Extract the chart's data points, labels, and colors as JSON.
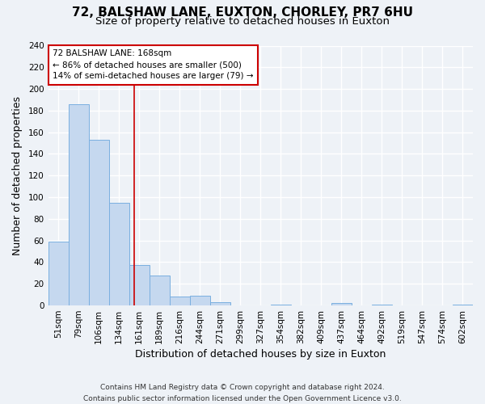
{
  "title": "72, BALSHAW LANE, EUXTON, CHORLEY, PR7 6HU",
  "subtitle": "Size of property relative to detached houses in Euxton",
  "xlabel": "Distribution of detached houses by size in Euxton",
  "ylabel": "Number of detached properties",
  "footer_line1": "Contains HM Land Registry data © Crown copyright and database right 2024.",
  "footer_line2": "Contains public sector information licensed under the Open Government Licence v3.0.",
  "bin_labels": [
    "51sqm",
    "79sqm",
    "106sqm",
    "134sqm",
    "161sqm",
    "189sqm",
    "216sqm",
    "244sqm",
    "271sqm",
    "299sqm",
    "327sqm",
    "354sqm",
    "382sqm",
    "409sqm",
    "437sqm",
    "464sqm",
    "492sqm",
    "519sqm",
    "547sqm",
    "574sqm",
    "602sqm"
  ],
  "bar_heights": [
    59,
    186,
    153,
    95,
    37,
    28,
    8,
    9,
    3,
    0,
    0,
    1,
    0,
    0,
    2,
    0,
    1,
    0,
    0,
    0,
    1
  ],
  "bar_color": "#c5d8ef",
  "bar_edge_color": "#7aafe0",
  "ylim": [
    0,
    240
  ],
  "yticks": [
    0,
    20,
    40,
    60,
    80,
    100,
    120,
    140,
    160,
    180,
    200,
    220,
    240
  ],
  "annotation_text_line1": "72 BALSHAW LANE: 168sqm",
  "annotation_text_line2": "← 86% of detached houses are smaller (500)",
  "annotation_text_line3": "14% of semi-detached houses are larger (79) →",
  "annotation_box_color": "#ffffff",
  "annotation_border_color": "#cc0000",
  "red_line_color": "#cc0000",
  "background_color": "#eef2f7",
  "grid_color": "#ffffff",
  "title_fontsize": 11,
  "subtitle_fontsize": 9.5,
  "axis_label_fontsize": 9,
  "tick_fontsize": 7.5,
  "footer_fontsize": 6.5
}
